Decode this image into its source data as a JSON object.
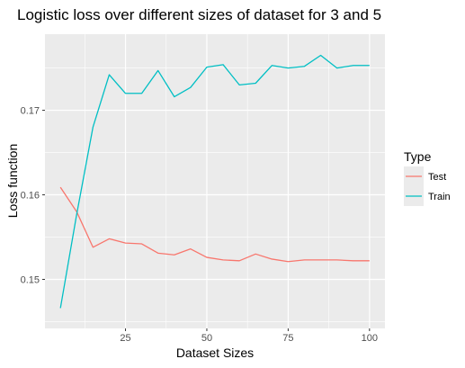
{
  "chart_data": {
    "type": "line",
    "title": "Logistic loss over different sizes of dataset for 3 and 5",
    "xlabel": "Dataset Sizes",
    "ylabel": "Loss function",
    "xlim": [
      0.25,
      104.75
    ],
    "ylim": [
      0.1442,
      0.179
    ],
    "x_ticks": [
      25,
      50,
      75,
      100
    ],
    "x_tick_labels": [
      "25",
      "50",
      "75",
      "100"
    ],
    "y_ticks": [
      0.15,
      0.16,
      0.17
    ],
    "y_tick_labels": [
      "0.15",
      "0.16",
      "0.17"
    ],
    "grid": true,
    "legend": {
      "title": "Type",
      "placement": "right"
    },
    "x": [
      5,
      10,
      15,
      20,
      25,
      30,
      35,
      40,
      45,
      50,
      55,
      60,
      65,
      70,
      75,
      80,
      85,
      90,
      95,
      100
    ],
    "series": [
      {
        "name": "Test",
        "color": "#F8766D",
        "values": [
          0.1609,
          0.158,
          0.1538,
          0.1548,
          0.1543,
          0.1542,
          0.1531,
          0.1529,
          0.1536,
          0.1526,
          0.1523,
          0.1522,
          0.153,
          0.1524,
          0.1521,
          0.1523,
          0.1523,
          0.1523,
          0.1522,
          0.1522
        ]
      },
      {
        "name": "Train",
        "color": "#00BFC4",
        "values": [
          0.1466,
          0.1577,
          0.168,
          0.1742,
          0.172,
          0.172,
          0.1747,
          0.1716,
          0.1727,
          0.1751,
          0.1754,
          0.173,
          0.1732,
          0.1753,
          0.175,
          0.1752,
          0.1765,
          0.175,
          0.1753,
          0.1753
        ]
      }
    ]
  }
}
